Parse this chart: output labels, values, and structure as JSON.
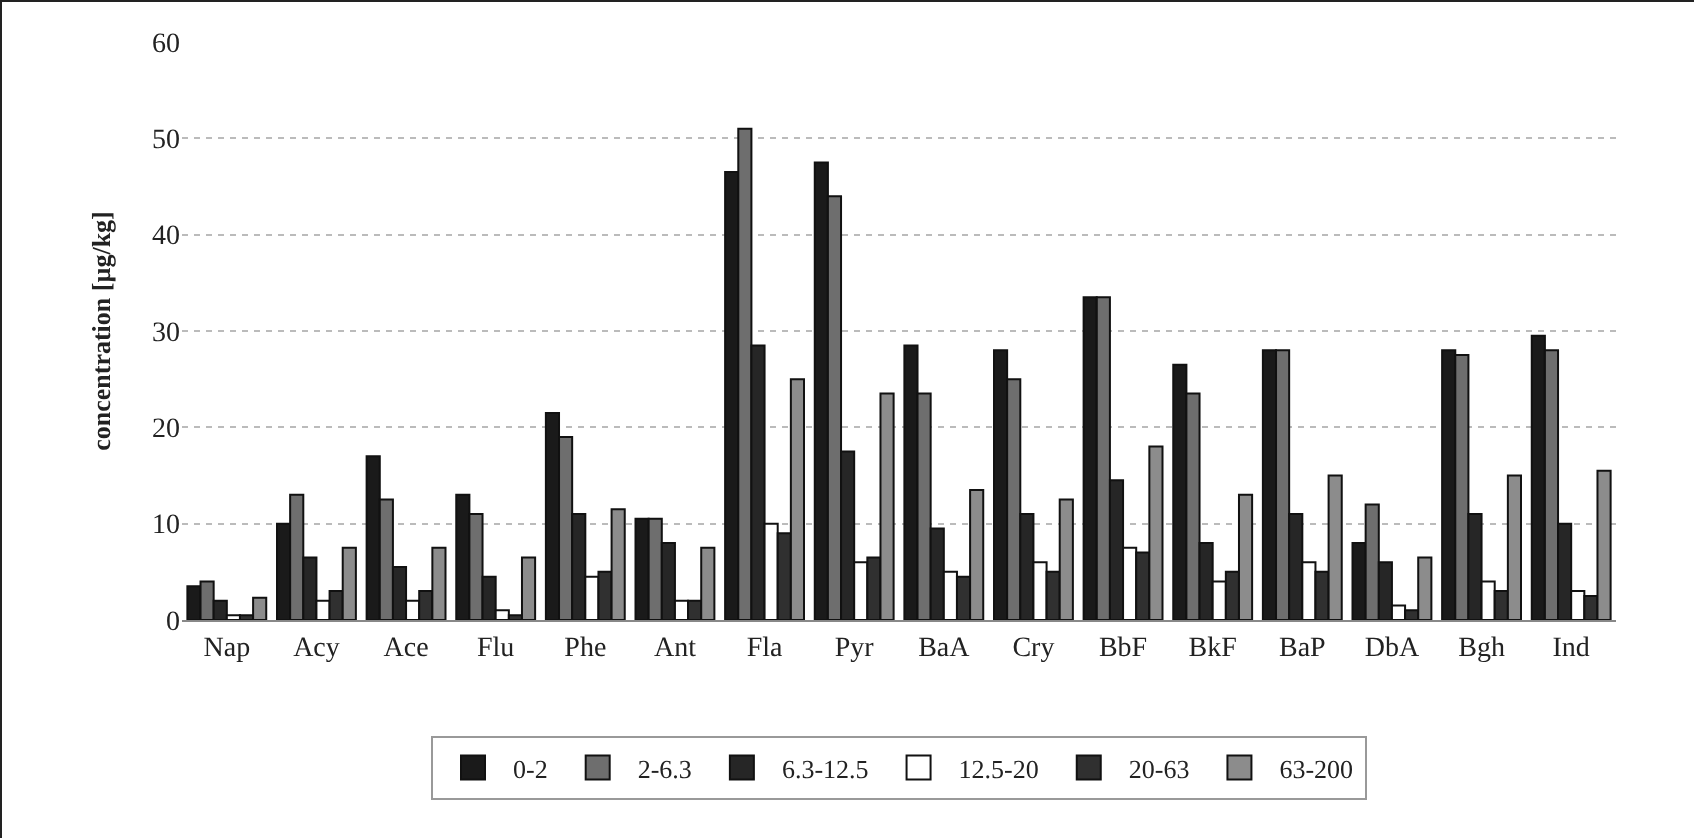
{
  "chart_data": {
    "type": "bar",
    "ylabel": "concentration [µg/kg]",
    "categories": [
      "Nap",
      "Acy",
      "Ace",
      "Flu",
      "Phe",
      "Ant",
      "Fla",
      "Pyr",
      "BaA",
      "Cry",
      "BbF",
      "BkF",
      "BaP",
      "DbA",
      "Bgh",
      "Ind"
    ],
    "series": [
      {
        "name": "0-2",
        "color": "#1a1a1a",
        "values": [
          3.5,
          10,
          17,
          13,
          21.5,
          10.5,
          46.5,
          47.5,
          28.5,
          28,
          33.5,
          26.5,
          28,
          8,
          28,
          29.5
        ]
      },
      {
        "name": "2-6.3",
        "color": "#6e6e6e",
        "values": [
          4,
          13,
          12.5,
          11,
          19,
          10.5,
          51,
          44,
          23.5,
          25,
          33.5,
          23.5,
          28,
          12,
          27.5,
          28
        ]
      },
      {
        "name": "6.3-12.5",
        "color": "#262626",
        "values": [
          2,
          6.5,
          5.5,
          4.5,
          11,
          8,
          28.5,
          17.5,
          9.5,
          11,
          14.5,
          8,
          11,
          6,
          11,
          10
        ]
      },
      {
        "name": "12.5-20",
        "color": "#ffffff",
        "values": [
          0.5,
          2,
          2,
          1,
          4.5,
          2,
          10,
          6,
          5,
          6,
          7.5,
          4,
          6,
          1.5,
          4,
          3
        ]
      },
      {
        "name": "20-63",
        "color": "#303030",
        "values": [
          0.5,
          3,
          3,
          0.5,
          5,
          2,
          9,
          6.5,
          4.5,
          5,
          7,
          5,
          5,
          1,
          3,
          2.5
        ]
      },
      {
        "name": "63-200",
        "color": "#8c8c8c",
        "values": [
          2.3,
          7.5,
          7.5,
          6.5,
          11.5,
          7.5,
          25,
          23.5,
          13.5,
          12.5,
          18,
          13,
          15,
          6.5,
          15,
          15.5
        ]
      }
    ],
    "ylim": [
      0,
      60
    ],
    "yticks": [
      0,
      10,
      20,
      30,
      40,
      50,
      60
    ],
    "grid": "y",
    "legend": "bottom"
  }
}
